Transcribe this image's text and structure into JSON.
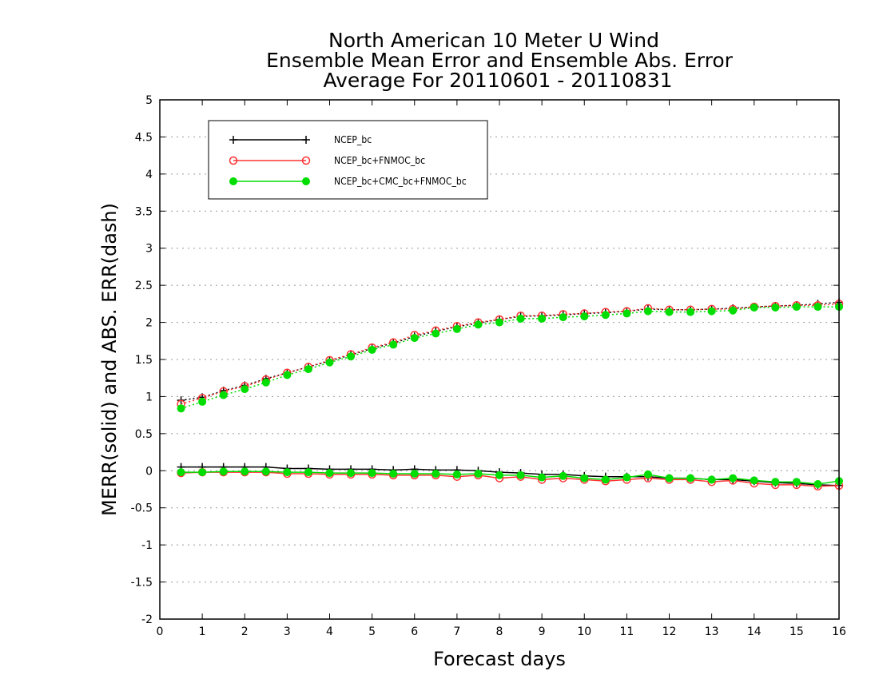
{
  "chart_data": {
    "type": "line",
    "title_lines": [
      "North American 10 Meter U Wind",
      "Ensemble Mean Error and Ensemble Abs. Error",
      "Average For 20110601 - 20110831"
    ],
    "xlabel": "Forecast days",
    "ylabel": "MERR(solid) and ABS. ERR(dash)",
    "xlim": [
      0,
      16
    ],
    "ylim": [
      -2,
      5
    ],
    "x_ticks": [
      "0",
      "1",
      "2",
      "3",
      "4",
      "5",
      "6",
      "7",
      "8",
      "9",
      "10",
      "11",
      "12",
      "13",
      "14",
      "15",
      "16"
    ],
    "y_ticks": [
      "-2",
      "-1.5",
      "-1",
      "-0.5",
      "0",
      "0.5",
      "1",
      "1.5",
      "2",
      "2.5",
      "3",
      "3.5",
      "4",
      "4.5",
      "5"
    ],
    "y_tick_values": [
      -2,
      -1.5,
      -1,
      -0.5,
      0,
      0.5,
      1,
      1.5,
      2,
      2.5,
      3,
      3.5,
      4,
      4.5,
      5
    ],
    "grid": "horizontal dotted",
    "legend_position": "top-left",
    "x": [
      0.5,
      1,
      1.5,
      2,
      2.5,
      3,
      3.5,
      4,
      4.5,
      5,
      5.5,
      6,
      6.5,
      7,
      7.5,
      8,
      8.5,
      9,
      9.5,
      10,
      10.5,
      11,
      11.5,
      12,
      12.5,
      13,
      13.5,
      14,
      14.5,
      15,
      15.5,
      16
    ],
    "series": [
      {
        "name": "NCEP_bc",
        "color": "#000000",
        "marker": "plus",
        "merr": [
          0.05,
          0.05,
          0.05,
          0.05,
          0.05,
          0.03,
          0.03,
          0.02,
          0.02,
          0.02,
          0.01,
          0.02,
          0.01,
          0.01,
          0.0,
          -0.02,
          -0.03,
          -0.05,
          -0.05,
          -0.07,
          -0.08,
          -0.08,
          -0.08,
          -0.1,
          -0.1,
          -0.12,
          -0.12,
          -0.14,
          -0.16,
          -0.17,
          -0.19,
          -0.2
        ],
        "abs_err": [
          0.95,
          0.99,
          1.08,
          1.15,
          1.24,
          1.32,
          1.4,
          1.48,
          1.56,
          1.65,
          1.72,
          1.81,
          1.88,
          1.94,
          1.99,
          2.04,
          2.08,
          2.09,
          2.1,
          2.12,
          2.13,
          2.15,
          2.18,
          2.17,
          2.17,
          2.18,
          2.19,
          2.21,
          2.22,
          2.23,
          2.25,
          2.27
        ]
      },
      {
        "name": "NCEP_bc+FNMOC_bc",
        "color": "#ff3333",
        "marker": "open-circle",
        "merr": [
          -0.03,
          -0.02,
          -0.02,
          -0.02,
          -0.02,
          -0.04,
          -0.04,
          -0.05,
          -0.05,
          -0.05,
          -0.06,
          -0.06,
          -0.06,
          -0.08,
          -0.06,
          -0.1,
          -0.08,
          -0.12,
          -0.1,
          -0.12,
          -0.14,
          -0.12,
          -0.1,
          -0.12,
          -0.12,
          -0.15,
          -0.13,
          -0.17,
          -0.19,
          -0.19,
          -0.21,
          -0.2
        ],
        "abs_err": [
          0.9,
          0.98,
          1.07,
          1.14,
          1.23,
          1.32,
          1.4,
          1.49,
          1.57,
          1.66,
          1.73,
          1.83,
          1.89,
          1.95,
          2.0,
          2.04,
          2.09,
          2.09,
          2.11,
          2.12,
          2.14,
          2.15,
          2.19,
          2.17,
          2.17,
          2.18,
          2.18,
          2.21,
          2.22,
          2.23,
          2.23,
          2.25
        ]
      },
      {
        "name": "NCEP_bc+CMC_bc+FNMOC_bc",
        "color": "#00dd00",
        "marker": "filled-circle",
        "merr": [
          -0.02,
          -0.02,
          -0.01,
          -0.01,
          -0.01,
          -0.02,
          -0.02,
          -0.03,
          -0.03,
          -0.03,
          -0.04,
          -0.04,
          -0.04,
          -0.05,
          -0.04,
          -0.06,
          -0.06,
          -0.09,
          -0.07,
          -0.1,
          -0.12,
          -0.09,
          -0.05,
          -0.1,
          -0.1,
          -0.12,
          -0.1,
          -0.13,
          -0.15,
          -0.15,
          -0.18,
          -0.14
        ],
        "abs_err": [
          0.84,
          0.93,
          1.02,
          1.1,
          1.19,
          1.29,
          1.37,
          1.46,
          1.54,
          1.63,
          1.7,
          1.79,
          1.85,
          1.91,
          1.97,
          2.0,
          2.05,
          2.05,
          2.07,
          2.08,
          2.1,
          2.12,
          2.15,
          2.14,
          2.14,
          2.15,
          2.16,
          2.2,
          2.2,
          2.21,
          2.21,
          2.21
        ]
      }
    ]
  }
}
